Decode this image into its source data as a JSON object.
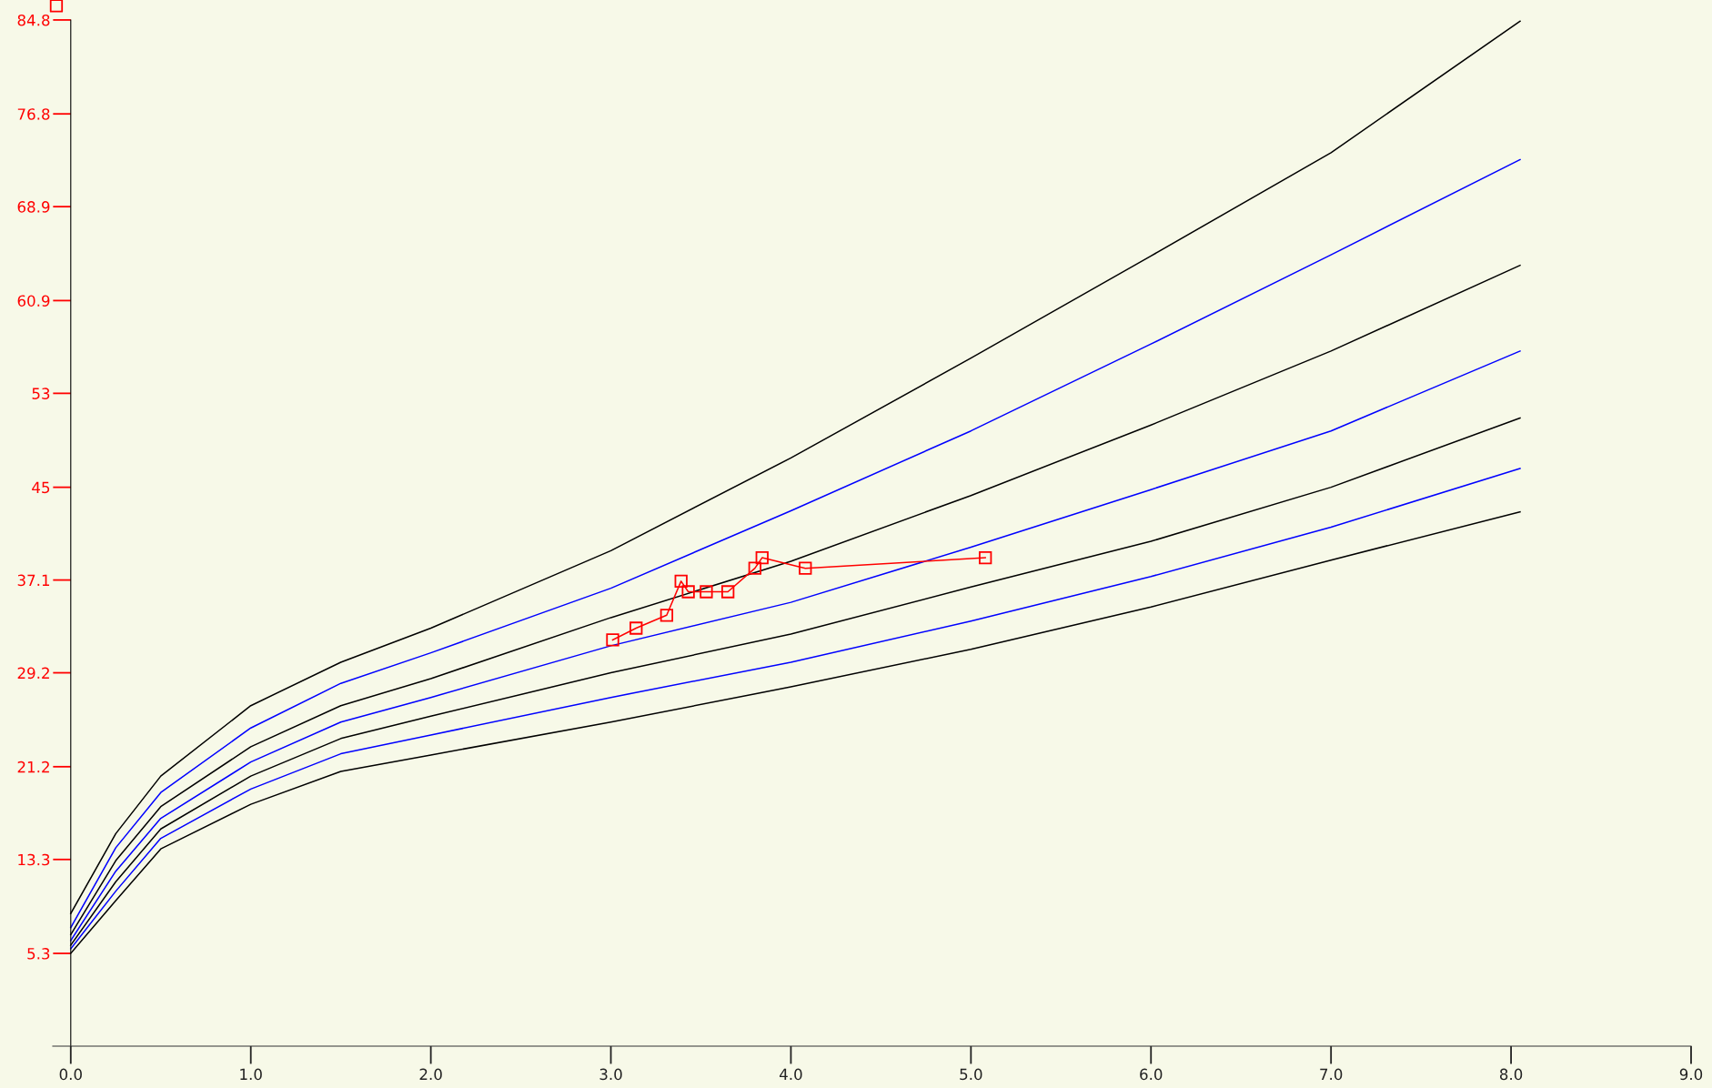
{
  "chart_data": {
    "type": "line",
    "xlim": [
      -0.1,
      9.0
    ],
    "ylim": [
      -2.6,
      86.5
    ],
    "xticks": [
      {
        "value": 0,
        "label": "0.0"
      },
      {
        "value": 1,
        "label": "1.0"
      },
      {
        "value": 2,
        "label": "2.0"
      },
      {
        "value": 3,
        "label": "3.0"
      },
      {
        "value": 4,
        "label": "4.0"
      },
      {
        "value": 5,
        "label": "5.0"
      },
      {
        "value": 6,
        "label": "6.0"
      },
      {
        "value": 7,
        "label": "7.0"
      },
      {
        "value": 8,
        "label": "8.0"
      },
      {
        "value": 9,
        "label": "9.0"
      }
    ],
    "yticks": [
      5.3,
      13.3,
      21.2,
      29.2,
      37.1,
      45,
      53,
      60.9,
      68.9,
      76.8,
      84.8
    ],
    "grid": false,
    "legend": false,
    "series": [
      {
        "color": "#000000",
        "marker": "none",
        "x": [
          0,
          0.25,
          0.5,
          1,
          1.5,
          2,
          3,
          4,
          5,
          6,
          7,
          8.05
        ],
        "values": [
          8.7,
          15.5,
          20.4,
          26.4,
          30.1,
          33.0,
          39.6,
          47.5,
          56.0,
          64.7,
          73.5,
          84.7
        ]
      },
      {
        "color": "#0000ff",
        "marker": "none",
        "x": [
          0,
          0.25,
          0.5,
          1,
          1.5,
          2,
          3,
          4,
          5,
          6,
          7,
          8.05
        ],
        "values": [
          7.5,
          14.3,
          19.0,
          24.5,
          28.3,
          30.9,
          36.4,
          43.0,
          49.8,
          57.2,
          64.8,
          72.9
        ]
      },
      {
        "color": "#000000",
        "marker": "none",
        "x": [
          0,
          0.25,
          0.5,
          1,
          1.5,
          2,
          3,
          4,
          5,
          6,
          7,
          8.05
        ],
        "values": [
          6.9,
          13.2,
          17.8,
          22.9,
          26.4,
          28.7,
          33.9,
          38.7,
          44.3,
          50.3,
          56.6,
          63.9
        ]
      },
      {
        "color": "#0000ff",
        "marker": "none",
        "x": [
          0,
          0.25,
          0.5,
          1,
          1.5,
          2,
          3,
          4,
          5,
          6,
          7,
          8.05
        ],
        "values": [
          6.4,
          12.3,
          16.8,
          21.6,
          25.0,
          27.1,
          31.5,
          35.2,
          39.9,
          44.8,
          49.8,
          56.6
        ]
      },
      {
        "color": "#000000",
        "marker": "none",
        "x": [
          0,
          0.25,
          0.5,
          1,
          1.5,
          2,
          3,
          4,
          5,
          6,
          7,
          8.05
        ],
        "values": [
          6.0,
          11.4,
          15.9,
          20.4,
          23.6,
          25.5,
          29.2,
          32.5,
          36.5,
          40.4,
          45.0,
          50.9
        ]
      },
      {
        "color": "#0000ff",
        "marker": "none",
        "x": [
          0,
          0.25,
          0.5,
          1,
          1.5,
          2,
          3,
          4,
          5,
          6,
          7,
          8.05
        ],
        "values": [
          5.7,
          10.6,
          15.1,
          19.3,
          22.3,
          23.9,
          27.1,
          30.1,
          33.6,
          37.4,
          41.6,
          46.6
        ]
      },
      {
        "color": "#000000",
        "marker": "none",
        "x": [
          0,
          0.25,
          0.5,
          1,
          1.5,
          2,
          3,
          4,
          5,
          6,
          7,
          8.05
        ],
        "values": [
          5.3,
          9.8,
          14.2,
          18.0,
          20.8,
          22.2,
          25.0,
          28.0,
          31.2,
          34.8,
          38.8,
          42.9
        ]
      },
      {
        "color": "#ff0000",
        "marker": "square",
        "x": [
          3.01,
          3.14,
          3.31,
          3.39,
          3.43,
          3.53,
          3.65,
          3.8,
          3.84,
          4.08,
          5.08
        ],
        "values": [
          32.0,
          33.0,
          34.1,
          37.0,
          36.1,
          36.1,
          36.1,
          38.1,
          39.0,
          38.1,
          39.0
        ]
      },
      {
        "type": "scatter",
        "color": "#ff0000",
        "marker": "square",
        "x": [
          -0.08
        ],
        "values": [
          86.0
        ]
      }
    ]
  }
}
